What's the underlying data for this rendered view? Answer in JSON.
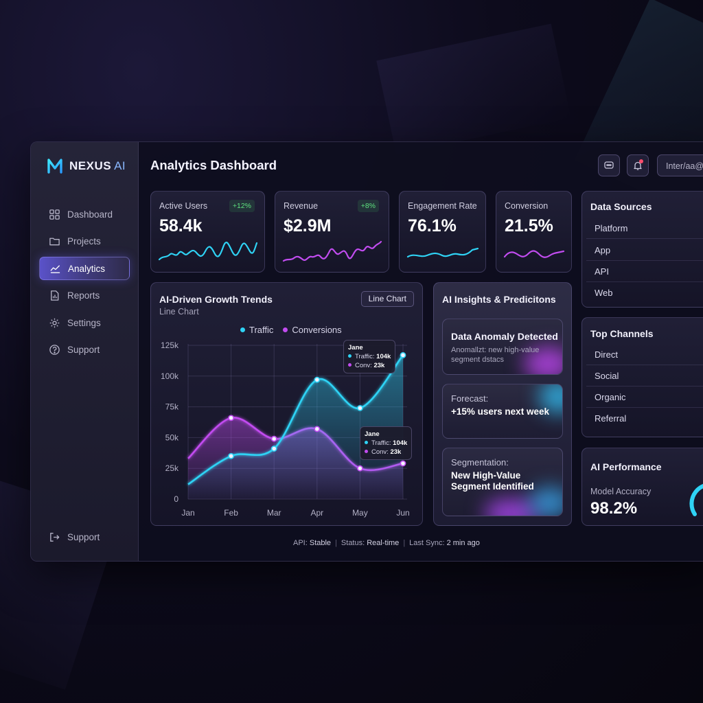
{
  "app": {
    "brand_name": "NEXUS",
    "brand_suffix": "AI"
  },
  "sidebar": {
    "items": [
      {
        "label": "Dashboard",
        "icon": "grid-icon"
      },
      {
        "label": "Projects",
        "icon": "folder-icon"
      },
      {
        "label": "Analytics",
        "icon": "line-chart-icon",
        "active": true
      },
      {
        "label": "Reports",
        "icon": "report-icon"
      },
      {
        "label": "Settings",
        "icon": "gear-icon"
      },
      {
        "label": "Support",
        "icon": "help-icon"
      }
    ],
    "bottom_item": {
      "label": "Support",
      "icon": "logout-icon"
    }
  },
  "header": {
    "title": "Analytics Dashboard",
    "user_field": "Inter/aa@"
  },
  "kpis": [
    {
      "label": "Active Users",
      "value": "58.4k",
      "badge": "+12%",
      "color": "#2fd3f5"
    },
    {
      "label": "Revenue",
      "value": "$2.9M",
      "badge": "+8%",
      "color": "#c24cf0"
    },
    {
      "label": "Engagement Rate",
      "value": "76.1%",
      "color": "#2fd3f5"
    },
    {
      "label": "Conversion",
      "value": "21.5%",
      "color": "#c24cf0"
    }
  ],
  "growth_chart": {
    "title": "AI-Driven Growth Trends",
    "subtitle": "Line Chart",
    "type_button": "Line Chart",
    "tooltips": [
      {
        "month": "Jane",
        "traffic_label": "Traffic:",
        "traffic": "104k",
        "conv_label": "Conv:",
        "conv": "23k"
      },
      {
        "month": "Jane",
        "traffic_label": "Traffic:",
        "traffic": "104k",
        "conv_label": "Conv:",
        "conv": "23k"
      }
    ]
  },
  "chart_data": {
    "type": "line",
    "title": "AI-Driven Growth Trends",
    "subtitle": "Line Chart",
    "categories": [
      "Jan",
      "Feb",
      "Mar",
      "Apr",
      "May",
      "Jun"
    ],
    "series": [
      {
        "name": "Traffic",
        "color": "#2fd3f5",
        "values": [
          12,
          35,
          41,
          97,
          74,
          117
        ]
      },
      {
        "name": "Conversions",
        "color": "#c24cf0",
        "values": [
          33,
          66,
          49,
          57,
          25,
          29
        ]
      }
    ],
    "y_ticks": [
      "0",
      "25k",
      "50k",
      "75k",
      "100k",
      "125k"
    ],
    "ylim": [
      0,
      125
    ],
    "grid": true,
    "legend_position": "top"
  },
  "insights": {
    "title": "AI Insights & Predicitons",
    "cards": [
      {
        "title": "Data Anomaly Detected",
        "sub": "Anomallzt: new high-value segment dstacs"
      },
      {
        "label": "Forecast:",
        "text": "+15% users next week"
      },
      {
        "label": "Segmentation:",
        "text": "New High-Value Segment Identified"
      }
    ]
  },
  "data_sources": {
    "title": "Data Sources",
    "items": [
      "Platform",
      "App",
      "API",
      "Web"
    ]
  },
  "top_channels": {
    "title": "Top Channels",
    "items": [
      "Direct",
      "Social",
      "Organic",
      "Referral"
    ]
  },
  "ai_performance": {
    "title": "AI Performance",
    "metric_label": "Model Accuracy",
    "metric_value": "98.2%"
  },
  "status_bar": {
    "api_label": "API:",
    "api_value": "Stable",
    "status_label": "Status:",
    "status_value": "Real-time",
    "sync_label": "Last Sync:",
    "sync_value": "2 min ago"
  },
  "colors": {
    "accent_cyan": "#2fd3f5",
    "accent_magenta": "#c24cf0",
    "badge_green": "#5ee07f"
  }
}
